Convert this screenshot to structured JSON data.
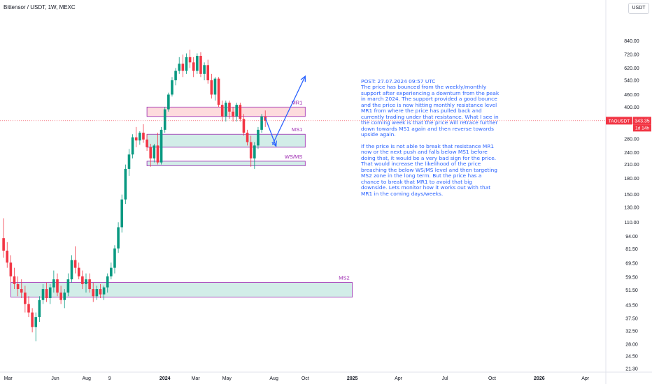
{
  "header": {
    "title": "Bittensor / USDT, 1W, MEXC",
    "currency_button": "USDT"
  },
  "colors": {
    "up": "#089981",
    "down": "#f23645",
    "note": "#2962ff",
    "zone_green": "#089981",
    "zone_red": "#f23645",
    "zone_border": "#9c27b0",
    "price_line": "#f23645"
  },
  "price_tag": {
    "symbol": "TAOUSDT",
    "price": "343.35",
    "countdown": "1d 14h"
  },
  "note_text": "POST: 27.07.2024 09:57 UTC\nThe price has bounced from the weekly/monthly support after experiencing a downturn from the peak in march 2024. The support provided a good bounce and the price is now hitting monthly resistance level MR1 from where the price has pulled back and currently trading under that resistance. What I see in the coming week is that the price will retrace further down towards MS1 again and then reverse towards upside again.\n\nIf the price is not able to break that resistance MR1 now or the next push and falls below MS1 before doing that, it would be a very bad sign for the price. That would increase the likelihood of the price breaching the below WS/MS level and then targeting MS2 zone in the long term. But the price has a chance to break that MR1 to avoid that big downside. Lets monitor how it works out with that MR1 in the coming days/weeks.",
  "chart_data": {
    "type": "candlestick",
    "scale": "log",
    "ylim": [
      20.5,
      1050
    ],
    "x_start": "2023-02-13",
    "x_end": "2026-05-11",
    "y_ticks": [
      "840.00",
      "720.00",
      "620.00",
      "540.00",
      "460.00",
      "400.00",
      "340.00",
      "280.00",
      "240.00",
      "210.00",
      "180.00",
      "150.00",
      "130.00",
      "110.00",
      "94.00",
      "81.50",
      "69.50",
      "59.50",
      "51.50",
      "43.50",
      "37.50",
      "32.50",
      "28.00",
      "24.50",
      "21.30"
    ],
    "x_ticks": [
      {
        "date": "2023-03-01",
        "label": "Mar"
      },
      {
        "date": "2023-06-01",
        "label": "Jun"
      },
      {
        "date": "2023-08-01",
        "label": "Aug"
      },
      {
        "date": "2023-09-15",
        "label": "9"
      },
      {
        "date": "2024-01-01",
        "label": "2024"
      },
      {
        "date": "2024-03-01",
        "label": "Mar"
      },
      {
        "date": "2024-05-01",
        "label": "May"
      },
      {
        "date": "2024-08-01",
        "label": "Aug"
      },
      {
        "date": "2024-10-01",
        "label": "Oct"
      },
      {
        "date": "2025-01-01",
        "label": "2025"
      },
      {
        "date": "2025-04-01",
        "label": "Apr"
      },
      {
        "date": "2025-07-01",
        "label": "Jul"
      },
      {
        "date": "2025-10-01",
        "label": "Oct"
      },
      {
        "date": "2026-01-01",
        "label": "2026"
      },
      {
        "date": "2026-04-01",
        "label": "Apr"
      }
    ],
    "candles": [
      [
        "2023-02-20",
        92,
        115,
        74,
        80
      ],
      [
        "2023-02-27",
        80,
        88,
        66,
        70
      ],
      [
        "2023-03-06",
        70,
        76,
        56,
        60
      ],
      [
        "2023-03-13",
        60,
        66,
        52,
        55
      ],
      [
        "2023-03-20",
        55,
        60,
        48,
        52
      ],
      [
        "2023-03-27",
        52,
        58,
        47,
        50
      ],
      [
        "2023-04-03",
        50,
        54,
        40,
        44
      ],
      [
        "2023-04-10",
        44,
        48,
        38,
        40
      ],
      [
        "2023-04-17",
        40,
        42,
        32,
        34
      ],
      [
        "2023-04-24",
        34,
        40,
        29,
        38
      ],
      [
        "2023-05-01",
        38,
        48,
        36,
        46
      ],
      [
        "2023-05-08",
        46,
        55,
        44,
        52
      ],
      [
        "2023-05-15",
        52,
        56,
        45,
        47
      ],
      [
        "2023-05-22",
        47,
        55,
        44,
        53
      ],
      [
        "2023-05-29",
        53,
        64,
        50,
        58
      ],
      [
        "2023-06-05",
        58,
        62,
        48,
        50
      ],
      [
        "2023-06-12",
        50,
        54,
        44,
        46
      ],
      [
        "2023-06-19",
        46,
        52,
        42,
        50
      ],
      [
        "2023-06-26",
        50,
        62,
        48,
        58
      ],
      [
        "2023-07-03",
        58,
        76,
        56,
        72
      ],
      [
        "2023-07-10",
        72,
        84,
        62,
        66
      ],
      [
        "2023-07-17",
        66,
        70,
        58,
        60
      ],
      [
        "2023-07-24",
        60,
        64,
        52,
        55
      ],
      [
        "2023-07-31",
        55,
        62,
        50,
        58
      ],
      [
        "2023-08-07",
        58,
        62,
        50,
        52
      ],
      [
        "2023-08-14",
        52,
        56,
        45,
        48
      ],
      [
        "2023-08-21",
        48,
        54,
        46,
        52
      ],
      [
        "2023-08-28",
        52,
        55,
        47,
        49
      ],
      [
        "2023-09-04",
        49,
        54,
        46,
        53
      ],
      [
        "2023-09-11",
        53,
        62,
        50,
        60
      ],
      [
        "2023-09-18",
        60,
        70,
        58,
        66
      ],
      [
        "2023-09-25",
        66,
        85,
        62,
        82
      ],
      [
        "2023-10-02",
        82,
        110,
        78,
        104
      ],
      [
        "2023-10-09",
        104,
        150,
        98,
        142
      ],
      [
        "2023-10-16",
        142,
        210,
        135,
        200
      ],
      [
        "2023-10-23",
        200,
        250,
        185,
        235
      ],
      [
        "2023-10-30",
        235,
        295,
        225,
        285
      ],
      [
        "2023-11-06",
        285,
        320,
        255,
        275
      ],
      [
        "2023-11-13",
        275,
        305,
        262,
        300
      ],
      [
        "2023-11-20",
        300,
        330,
        268,
        278
      ],
      [
        "2023-11-27",
        278,
        295,
        245,
        255
      ],
      [
        "2023-12-04",
        255,
        265,
        205,
        225
      ],
      [
        "2023-12-11",
        225,
        265,
        215,
        260
      ],
      [
        "2023-12-18",
        260,
        300,
        210,
        215
      ],
      [
        "2023-12-25",
        215,
        320,
        210,
        310
      ],
      [
        "2024-01-01",
        310,
        400,
        300,
        390
      ],
      [
        "2024-01-08",
        390,
        470,
        380,
        460
      ],
      [
        "2024-01-15",
        460,
        560,
        450,
        540
      ],
      [
        "2024-01-22",
        540,
        620,
        510,
        600
      ],
      [
        "2024-01-29",
        600,
        700,
        580,
        650
      ],
      [
        "2024-02-05",
        650,
        720,
        560,
        600
      ],
      [
        "2024-02-12",
        600,
        730,
        580,
        700
      ],
      [
        "2024-02-19",
        700,
        760,
        620,
        660
      ],
      [
        "2024-02-26",
        660,
        700,
        560,
        600
      ],
      [
        "2024-03-04",
        600,
        730,
        580,
        710
      ],
      [
        "2024-03-11",
        710,
        740,
        560,
        580
      ],
      [
        "2024-03-18",
        580,
        660,
        540,
        640
      ],
      [
        "2024-03-25",
        640,
        680,
        520,
        540
      ],
      [
        "2024-04-01",
        540,
        580,
        440,
        460
      ],
      [
        "2024-04-08",
        460,
        560,
        430,
        550
      ],
      [
        "2024-04-15",
        550,
        560,
        400,
        410
      ],
      [
        "2024-04-22",
        410,
        430,
        340,
        360
      ],
      [
        "2024-04-29",
        360,
        430,
        340,
        420
      ],
      [
        "2024-05-06",
        420,
        430,
        350,
        380
      ],
      [
        "2024-05-13",
        380,
        400,
        340,
        360
      ],
      [
        "2024-05-20",
        360,
        420,
        340,
        410
      ],
      [
        "2024-05-27",
        410,
        420,
        340,
        350
      ],
      [
        "2024-06-03",
        350,
        370,
        290,
        300
      ],
      [
        "2024-06-10",
        300,
        310,
        260,
        270
      ],
      [
        "2024-06-17",
        270,
        290,
        205,
        225
      ],
      [
        "2024-06-24",
        225,
        270,
        200,
        260
      ],
      [
        "2024-07-01",
        260,
        320,
        250,
        310
      ],
      [
        "2024-07-08",
        310,
        370,
        300,
        360
      ],
      [
        "2024-07-15",
        360,
        385,
        320,
        343.35
      ]
    ],
    "zones": [
      {
        "label": "MR1",
        "low": 360,
        "high": 400,
        "x_start": "2023-11-27",
        "x_end": "2024-10-01",
        "fill": "red"
      },
      {
        "label": "MS1",
        "low": 255,
        "high": 295,
        "x_start": "2023-11-27",
        "x_end": "2024-10-01",
        "fill": "green"
      },
      {
        "label": "WS/MS",
        "low": 207,
        "high": 218,
        "x_start": "2023-11-27",
        "x_end": "2024-10-01",
        "fill": "green"
      },
      {
        "label": "MS2",
        "low": 47.5,
        "high": 56,
        "x_start": "2023-03-06",
        "x_end": "2025-01-01",
        "fill": "green"
      }
    ],
    "arrow_up": [
      [
        "2024-07-29",
        262
      ],
      [
        "2024-10-01",
        565
      ]
    ],
    "arrow_down": [
      [
        "2024-07-15",
        355
      ],
      [
        "2024-08-05",
        258
      ]
    ],
    "current_price": 343.35
  }
}
